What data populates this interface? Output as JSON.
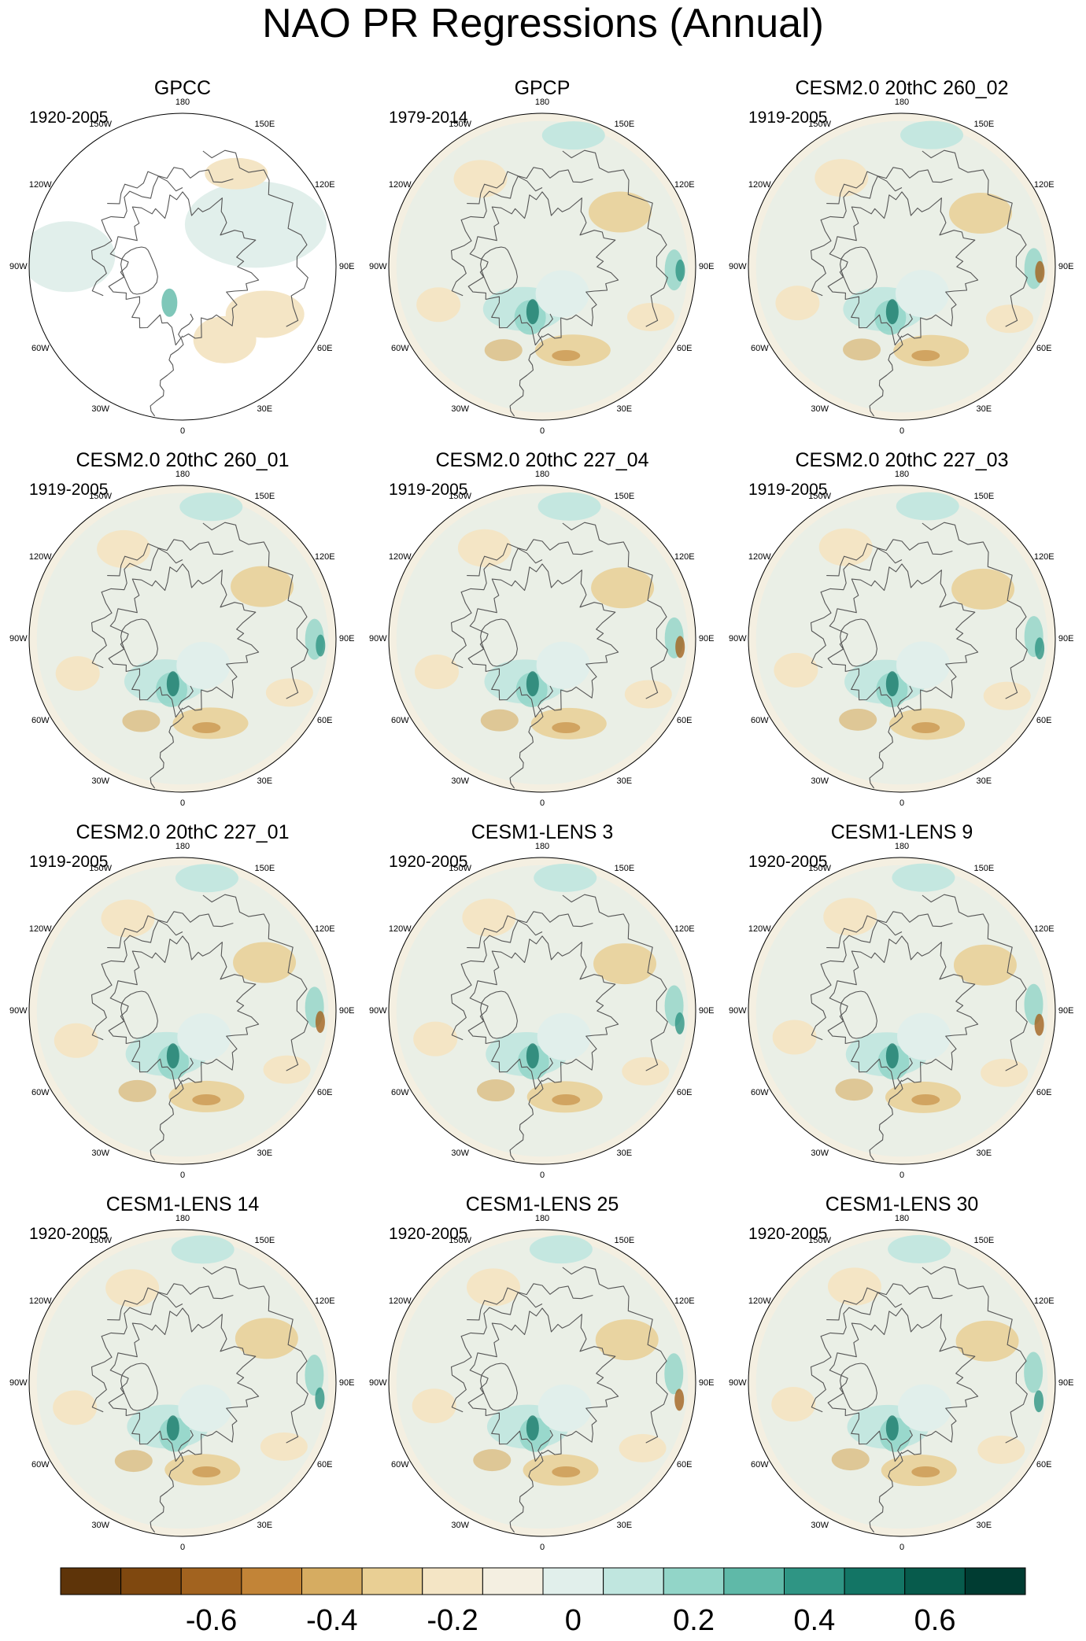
{
  "title": "NAO PR Regressions (Annual)",
  "longitude_labels": [
    "180",
    "150E",
    "120E",
    "90E",
    "60E",
    "30E",
    "0",
    "30W",
    "60W",
    "90W",
    "120W",
    "150W"
  ],
  "panels": [
    {
      "title": "GPCC",
      "period": "1920-2005",
      "variant": "gpcc"
    },
    {
      "title": "GPCP",
      "period": "1979-2014",
      "variant": "gpcp"
    },
    {
      "title": "CESM2.0 20thC 260_02",
      "period": "1919-2005",
      "variant": "model"
    },
    {
      "title": "CESM2.0 20thC 260_01",
      "period": "1919-2005",
      "variant": "model"
    },
    {
      "title": "CESM2.0 20thC 227_04",
      "period": "1919-2005",
      "variant": "model"
    },
    {
      "title": "CESM2.0 20thC 227_03",
      "period": "1919-2005",
      "variant": "model"
    },
    {
      "title": "CESM2.0 20thC 227_01",
      "period": "1919-2005",
      "variant": "model"
    },
    {
      "title": "CESM1-LENS 3",
      "period": "1920-2005",
      "variant": "model"
    },
    {
      "title": "CESM1-LENS 9",
      "period": "1920-2005",
      "variant": "model"
    },
    {
      "title": "CESM1-LENS 14",
      "period": "1920-2005",
      "variant": "model"
    },
    {
      "title": "CESM1-LENS 25",
      "period": "1920-2005",
      "variant": "model"
    },
    {
      "title": "CESM1-LENS 30",
      "period": "1920-2005",
      "variant": "model"
    }
  ],
  "colorbar": {
    "colors": [
      "#5e3409",
      "#7f480f",
      "#a2631f",
      "#c28437",
      "#d6ac61",
      "#e9cf94",
      "#f4e5c5",
      "#f4efe1",
      "#e1efeb",
      "#c0e6df",
      "#92d5c8",
      "#5fb9a8",
      "#2f9584",
      "#137565",
      "#075b4c",
      "#003c32"
    ],
    "tick_labels": [
      "-0.6",
      "-0.4",
      "-0.2",
      "0",
      "0.2",
      "0.4",
      "0.6"
    ]
  }
}
